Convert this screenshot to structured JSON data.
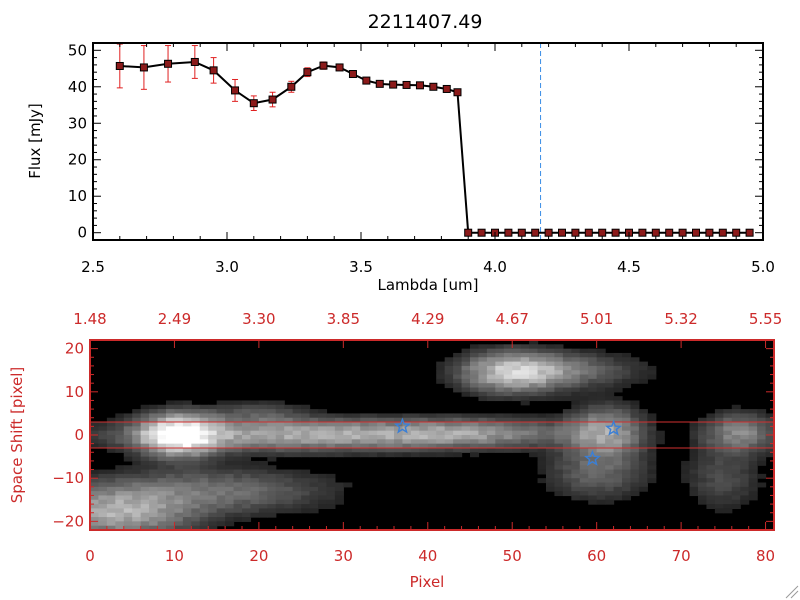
{
  "chart_data": [
    {
      "type": "line",
      "title": "2211407.49",
      "xlabel": "Lambda [um]",
      "ylabel": "Flux [mJy]",
      "xlim": [
        2.5,
        5.0
      ],
      "ylim": [
        -2,
        52
      ],
      "xticks": [
        2.5,
        3.0,
        3.5,
        4.0,
        4.5,
        5.0
      ],
      "xtick_labels": [
        "2.5",
        "3.0",
        "3.5",
        "4.0",
        "4.5",
        "5.0"
      ],
      "yticks": [
        0,
        10,
        20,
        30,
        40,
        50
      ],
      "ytick_labels": [
        "0",
        "10",
        "20",
        "30",
        "40",
        "50"
      ],
      "series": [
        {
          "x": [
            2.6,
            2.69,
            2.78,
            2.88,
            2.95,
            3.03,
            3.1,
            3.17,
            3.24,
            3.3,
            3.36,
            3.42,
            3.47,
            3.52,
            3.57,
            3.62,
            3.67,
            3.72,
            3.77,
            3.82,
            3.86,
            3.9,
            3.95,
            4.0,
            4.05,
            4.1,
            4.15,
            4.2,
            4.25,
            4.3,
            4.35,
            4.4,
            4.45,
            4.5,
            4.55,
            4.6,
            4.65,
            4.7,
            4.75,
            4.8,
            4.85,
            4.9,
            4.95
          ],
          "y": [
            45.7,
            45.3,
            46.3,
            46.8,
            44.5,
            39.0,
            35.5,
            36.5,
            40.0,
            44.0,
            45.8,
            45.3,
            43.5,
            41.7,
            40.8,
            40.6,
            40.5,
            40.4,
            40.0,
            39.4,
            38.5,
            0,
            0,
            0,
            0,
            0,
            0,
            0,
            0,
            0,
            0,
            0,
            0,
            0,
            0,
            0,
            0,
            0,
            0,
            0,
            0,
            0,
            0
          ],
          "yerr": [
            6.0,
            6.0,
            5.0,
            4.5,
            3.5,
            3.0,
            2.0,
            2.0,
            1.5,
            1.2,
            1.0,
            0.8,
            0.6,
            0.5,
            0.4,
            0.4,
            0.4,
            0.4,
            0.4,
            0.4,
            0.4,
            0.3,
            0.3,
            0.3,
            0.3,
            0.3,
            0.3,
            0.3,
            0.3,
            0.3,
            0.3,
            0.3,
            0.3,
            0.3,
            0.3,
            0.3,
            0.3,
            0.3,
            0.3,
            0.3,
            0.3,
            0.3,
            0.3
          ]
        }
      ],
      "vline_x": 4.17,
      "colors": {
        "line": "#000000",
        "marker": "#8b1a1a",
        "errorbar": "#e02020",
        "vline": "#3a8ee6"
      }
    },
    {
      "type": "heatmap",
      "xlabel": "Pixel",
      "ylabel": "Space Shift [pixel]",
      "xlim": [
        0,
        81
      ],
      "ylim": [
        -22,
        22
      ],
      "xticks": [
        0,
        10,
        20,
        30,
        40,
        50,
        60,
        70,
        80
      ],
      "xtick_labels": [
        "0",
        "10",
        "20",
        "30",
        "40",
        "50",
        "60",
        "70",
        "80"
      ],
      "yticks": [
        -20,
        -10,
        0,
        10,
        20
      ],
      "ytick_labels": [
        "−20",
        "−10",
        "0",
        "10",
        "20"
      ],
      "top_axis_labels": [
        "1.48",
        "2.49",
        "3.30",
        "3.85",
        "4.29",
        "4.67",
        "5.01",
        "5.32",
        "5.55"
      ],
      "aperture_lines_y": [
        3,
        -3
      ],
      "star_markers": [
        {
          "x": 37,
          "y": 2
        },
        {
          "x": 62,
          "y": 1.5
        },
        {
          "x": 59.5,
          "y": -5.5
        }
      ],
      "blobs": [
        {
          "x": 10.5,
          "y": 0,
          "sx": 3.0,
          "sy": 3.2,
          "a": 1.0
        },
        {
          "x": 25,
          "y": 0,
          "sx": 14,
          "sy": 2.4,
          "a": 0.55
        },
        {
          "x": 45,
          "y": 0.5,
          "sx": 8,
          "sy": 2.2,
          "a": 0.35
        },
        {
          "x": 61,
          "y": 0.5,
          "sx": 3,
          "sy": 4,
          "a": 0.5
        },
        {
          "x": 50,
          "y": 14.5,
          "sx": 4,
          "sy": 3.2,
          "a": 0.6
        },
        {
          "x": 56,
          "y": 15,
          "sx": 6,
          "sy": 2.6,
          "a": 0.3
        },
        {
          "x": 3,
          "y": -18,
          "sx": 6,
          "sy": 4,
          "a": 0.55
        },
        {
          "x": 15,
          "y": -13,
          "sx": 9,
          "sy": 3.5,
          "a": 0.3
        },
        {
          "x": 77,
          "y": 0.5,
          "sx": 3,
          "sy": 3,
          "a": 0.4
        },
        {
          "x": 60,
          "y": -9,
          "sx": 4,
          "sy": 4,
          "a": 0.25
        },
        {
          "x": 20,
          "y": 5,
          "sx": 4,
          "sy": 2,
          "a": 0.18
        },
        {
          "x": 75,
          "y": -10,
          "sx": 3,
          "sy": 5,
          "a": 0.18
        }
      ],
      "colors": {
        "frame": "#cc2a2a",
        "aperture": "#d03030",
        "star": "#3a7fd6"
      }
    }
  ]
}
